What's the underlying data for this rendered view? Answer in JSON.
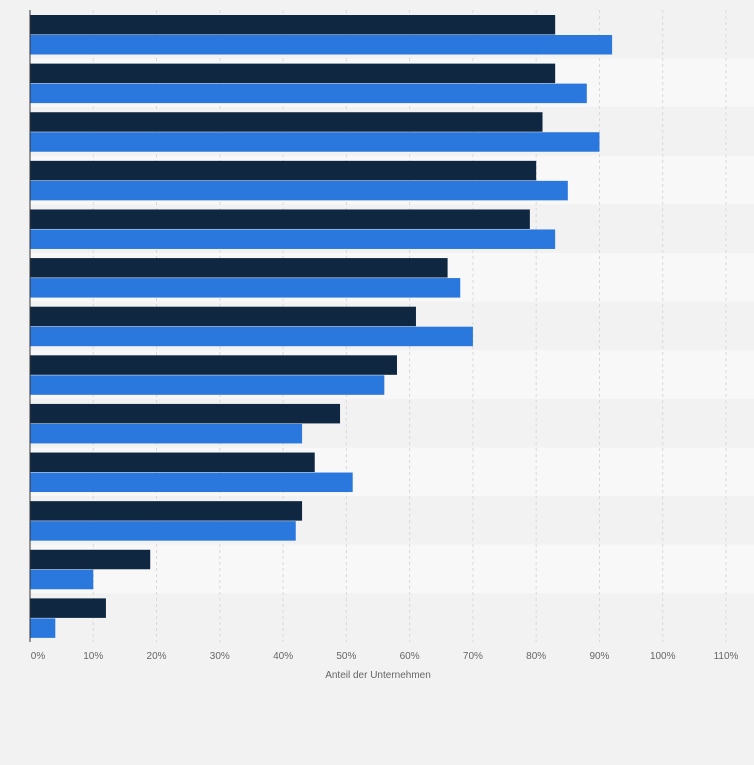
{
  "chart_data": {
    "type": "bar",
    "orientation": "horizontal",
    "categories": [
      "",
      "",
      "",
      "",
      "",
      "",
      "",
      "",
      "",
      "",
      "",
      "",
      ""
    ],
    "series": [
      {
        "values": [
          83,
          83,
          81,
          80,
          79,
          66,
          61,
          58,
          49,
          45,
          43,
          19,
          12
        ]
      },
      {
        "values": [
          92,
          88,
          90,
          85,
          83,
          68,
          70,
          56,
          43,
          51,
          42,
          10,
          4
        ]
      }
    ],
    "xlabel": "Anteil der Unternehmen",
    "xlim": [
      0,
      110
    ],
    "xticks": [
      "0%",
      "10%",
      "20%",
      "30%",
      "40%",
      "50%",
      "60%",
      "70%",
      "80%",
      "90%",
      "100%",
      "110%"
    ],
    "grid": true,
    "legend": "none",
    "colors": {
      "series": [
        "#0f2741",
        "#2a77dd"
      ],
      "band_light": "#f8f8f8",
      "band_dark": "#f2f2f2",
      "grid": "#d9d9d9",
      "axis_text": "#666666"
    }
  }
}
